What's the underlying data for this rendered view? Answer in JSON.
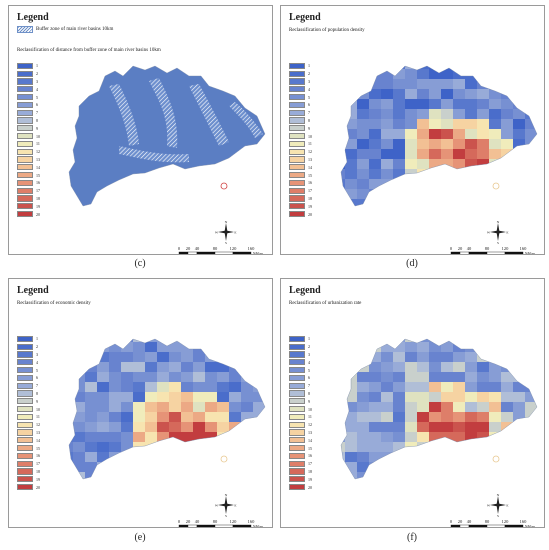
{
  "legend_values": [
    "1",
    "2",
    "3",
    "4",
    "5",
    "6",
    "7",
    "8",
    "9",
    "10",
    "11",
    "12",
    "13",
    "14",
    "15",
    "16",
    "17",
    "18",
    "19",
    "20"
  ],
  "colors": [
    "#3e63c8",
    "#4a6dcb",
    "#5878cd",
    "#6883cf",
    "#7790d2",
    "#879dd5",
    "#98abd8",
    "#b0bed7",
    "#c9d0cc",
    "#dfe2c0",
    "#f0ecbb",
    "#f7e4b0",
    "#f6d3a2",
    "#f2c094",
    "#eca985",
    "#e69377",
    "#de7e69",
    "#d5695b",
    "#cb534d",
    "#c23d3f"
  ],
  "scalebar": {
    "ticks": [
      "0",
      "20",
      "40",
      "80",
      "120",
      "160"
    ],
    "unit": "Miles"
  },
  "compass": {
    "n": "N",
    "s": "S",
    "e": "E",
    "w": "W"
  },
  "panels": [
    {
      "caption": "(c)",
      "legend_title": "Legend",
      "hatch_label": "Buffer zone of main river basins 10km",
      "subtitle": "Reclassification of distance from buffer zone of main river basins 10km"
    },
    {
      "caption": "(d)",
      "legend_title": "Legend",
      "subtitle": "Reclassification of population density"
    },
    {
      "caption": "(e)",
      "legend_title": "Legend",
      "subtitle": "Reclassification of economic density"
    },
    {
      "caption": "(f)",
      "legend_title": "Legend",
      "subtitle": "Reclassification of urbanization rate"
    }
  ]
}
